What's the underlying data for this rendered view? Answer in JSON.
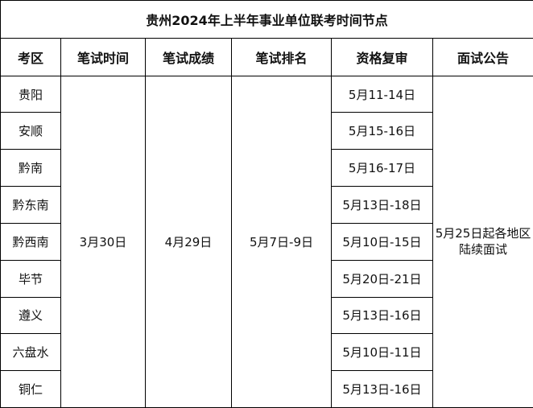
{
  "title": "贵州2024年上半年事业单位联考时间节点",
  "headers": [
    "考区",
    "笔试时间",
    "笔试成绩",
    "笔试排名",
    "资格复审",
    "面试公告"
  ],
  "written_exam_date": "3月30日",
  "score_date": "4月29日",
  "ranking_date": "5月7日-9日",
  "interview_notice": [
    "5月25日起各地区",
    "陆续面试"
  ],
  "rows": [
    {
      "region": "贵阳",
      "review": "5月11-14日"
    },
    {
      "region": "安顺",
      "review": "5月15-16日"
    },
    {
      "region": "黔南",
      "review": "5月16-17日"
    },
    {
      "region": "黔东南",
      "review": "5月13日-18日"
    },
    {
      "region": "黔西南",
      "review": "5月10日-15日"
    },
    {
      "region": "毕节",
      "review": "5月20日-21日"
    },
    {
      "region": "遵义",
      "review": "5月13日-16日"
    },
    {
      "region": "六盘水",
      "review": "5月10日-11日"
    },
    {
      "region": "铜仁",
      "review": "5月13日-16日"
    }
  ]
}
